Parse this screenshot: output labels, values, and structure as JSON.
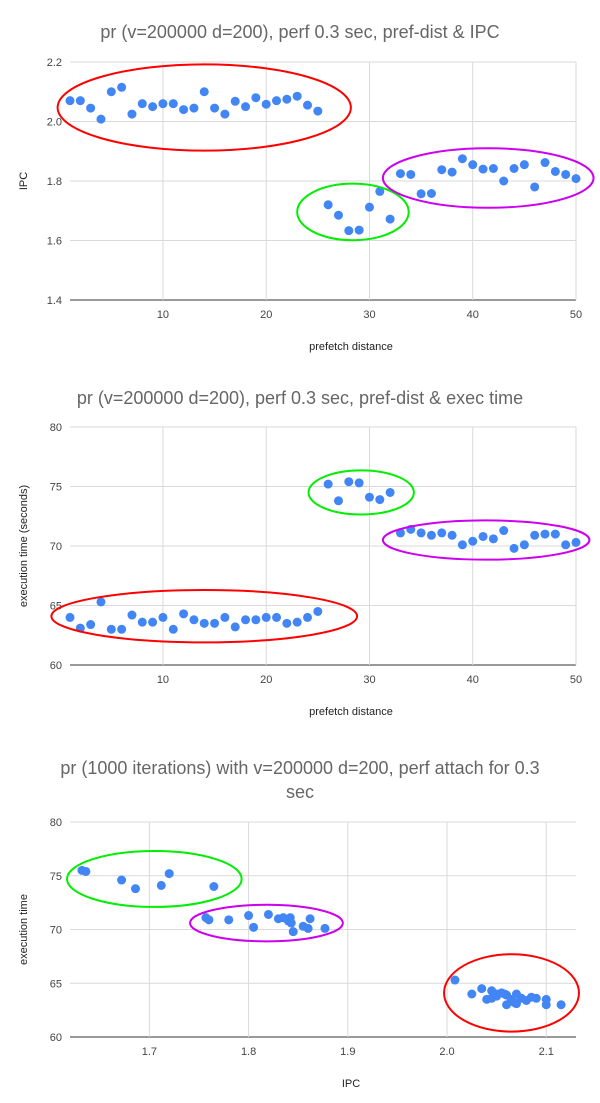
{
  "chart_data": [
    {
      "type": "scatter",
      "title_lines": [
        "pr (v=200000 d=200), perf 0.3 sec, pref-dist & IPC"
      ],
      "xlabel": "prefetch distance",
      "ylabel": "IPC",
      "xlim": [
        1,
        50
      ],
      "ylim": [
        1.4,
        2.2
      ],
      "xticks": [
        10,
        20,
        30,
        40,
        50
      ],
      "xtick_labels": [
        "10",
        "20",
        "30",
        "40",
        "50"
      ],
      "yticks": [
        1.4,
        1.6,
        1.8,
        2.0,
        2.2
      ],
      "ytick_labels": [
        "1.4",
        "1.6",
        "1.8",
        "2.0",
        "2.2"
      ],
      "grid": true,
      "points": [
        [
          1,
          2.07
        ],
        [
          2,
          2.07
        ],
        [
          3,
          2.045
        ],
        [
          4,
          2.008
        ],
        [
          5,
          2.1
        ],
        [
          6,
          2.115
        ],
        [
          7,
          2.025
        ],
        [
          8,
          2.06
        ],
        [
          9,
          2.05
        ],
        [
          10,
          2.06
        ],
        [
          11,
          2.06
        ],
        [
          12,
          2.04
        ],
        [
          13,
          2.045
        ],
        [
          14,
          2.1
        ],
        [
          15,
          2.045
        ],
        [
          16,
          2.025
        ],
        [
          17,
          2.068
        ],
        [
          18,
          2.05
        ],
        [
          19,
          2.08
        ],
        [
          20,
          2.058
        ],
        [
          21,
          2.07
        ],
        [
          22,
          2.075
        ],
        [
          23,
          2.085
        ],
        [
          24,
          2.055
        ],
        [
          25,
          2.035
        ],
        [
          26,
          1.72
        ],
        [
          27,
          1.685
        ],
        [
          28,
          1.633
        ],
        [
          29,
          1.635
        ],
        [
          30,
          1.712
        ],
        [
          31,
          1.765
        ],
        [
          32,
          1.672
        ],
        [
          33,
          1.825
        ],
        [
          34,
          1.822
        ],
        [
          35,
          1.757
        ],
        [
          36,
          1.758
        ],
        [
          37,
          1.838
        ],
        [
          38,
          1.83
        ],
        [
          39,
          1.875
        ],
        [
          40,
          1.855
        ],
        [
          41,
          1.84
        ],
        [
          42,
          1.842
        ],
        [
          43,
          1.8
        ],
        [
          44,
          1.842
        ],
        [
          45,
          1.855
        ],
        [
          46,
          1.78
        ],
        [
          47,
          1.862
        ],
        [
          48,
          1.832
        ],
        [
          49,
          1.822
        ],
        [
          50,
          1.808
        ]
      ],
      "annotations": [
        {
          "shape": "ellipse",
          "color": "#ff0000",
          "cx": 14,
          "cy": 2.047,
          "rx": 14.2,
          "ry": 0.145
        },
        {
          "shape": "ellipse",
          "color": "#00ee00",
          "cx": 28.4,
          "cy": 1.696,
          "rx": 5.4,
          "ry": 0.095
        },
        {
          "shape": "ellipse",
          "color": "#cc00ee",
          "cx": 41.5,
          "cy": 1.81,
          "rx": 10.2,
          "ry": 0.1
        }
      ]
    },
    {
      "type": "scatter",
      "title_lines": [
        "pr (v=200000 d=200), perf 0.3 sec, pref-dist & exec time"
      ],
      "xlabel": "prefetch distance",
      "ylabel": "execution time (seconds)",
      "xlim": [
        1,
        50
      ],
      "ylim": [
        60,
        80
      ],
      "xticks": [
        10,
        20,
        30,
        40,
        50
      ],
      "xtick_labels": [
        "10",
        "20",
        "30",
        "40",
        "50"
      ],
      "yticks": [
        60,
        65,
        70,
        75,
        80
      ],
      "ytick_labels": [
        "60",
        "65",
        "70",
        "75",
        "80"
      ],
      "grid": true,
      "points": [
        [
          1,
          64.0
        ],
        [
          2,
          63.1
        ],
        [
          3,
          63.4
        ],
        [
          4,
          65.3
        ],
        [
          5,
          63.0
        ],
        [
          6,
          63.0
        ],
        [
          7,
          64.2
        ],
        [
          8,
          63.6
        ],
        [
          9,
          63.6
        ],
        [
          10,
          64.0
        ],
        [
          11,
          63.0
        ],
        [
          12,
          64.3
        ],
        [
          13,
          63.8
        ],
        [
          14,
          63.5
        ],
        [
          15,
          63.5
        ],
        [
          16,
          64.0
        ],
        [
          17,
          63.2
        ],
        [
          18,
          63.8
        ],
        [
          19,
          63.8
        ],
        [
          20,
          64.0
        ],
        [
          21,
          64.0
        ],
        [
          22,
          63.5
        ],
        [
          23,
          63.6
        ],
        [
          24,
          64.0
        ],
        [
          25,
          64.5
        ],
        [
          26,
          75.2
        ],
        [
          27,
          73.8
        ],
        [
          28,
          75.4
        ],
        [
          29,
          75.3
        ],
        [
          30,
          74.1
        ],
        [
          31,
          73.9
        ],
        [
          32,
          74.5
        ],
        [
          33,
          71.1
        ],
        [
          34,
          71.4
        ],
        [
          35,
          71.1
        ],
        [
          36,
          70.9
        ],
        [
          37,
          71.1
        ],
        [
          38,
          70.9
        ],
        [
          39,
          70.1
        ],
        [
          40,
          70.4
        ],
        [
          41,
          70.8
        ],
        [
          42,
          70.6
        ],
        [
          43,
          71.3
        ],
        [
          44,
          69.8
        ],
        [
          45,
          70.1
        ],
        [
          46,
          70.9
        ],
        [
          47,
          71.0
        ],
        [
          48,
          71.0
        ],
        [
          49,
          70.1
        ],
        [
          50,
          70.3
        ]
      ],
      "annotations": [
        {
          "shape": "ellipse",
          "color": "#ff0000",
          "cx": 14,
          "cy": 64.1,
          "rx": 14.8,
          "ry": 2.2
        },
        {
          "shape": "ellipse",
          "color": "#00ee00",
          "cx": 29.2,
          "cy": 74.5,
          "rx": 5.1,
          "ry": 1.85
        },
        {
          "shape": "ellipse",
          "color": "#cc00ee",
          "cx": 41.3,
          "cy": 70.5,
          "rx": 10.0,
          "ry": 1.65
        }
      ]
    },
    {
      "type": "scatter",
      "title_lines": [
        "pr (1000 iterations) with v=200000 d=200, perf attach for 0.3",
        "sec"
      ],
      "xlabel": "IPC",
      "ylabel": "execution time",
      "xlim": [
        1.62,
        2.13
      ],
      "ylim": [
        60,
        80
      ],
      "xticks": [
        1.7,
        1.8,
        1.9,
        2.0,
        2.1
      ],
      "xtick_labels": [
        "1.7",
        "1.8",
        "1.9",
        "2.0",
        "2.1"
      ],
      "yticks": [
        60,
        65,
        70,
        75,
        80
      ],
      "ytick_labels": [
        "60",
        "65",
        "70",
        "75",
        "80"
      ],
      "grid": true,
      "points": [
        [
          1.632,
          75.5
        ],
        [
          1.636,
          75.4
        ],
        [
          1.672,
          74.6
        ],
        [
          1.686,
          73.8
        ],
        [
          1.712,
          74.1
        ],
        [
          1.72,
          75.2
        ],
        [
          1.765,
          74.0
        ],
        [
          1.757,
          71.1
        ],
        [
          1.76,
          70.9
        ],
        [
          1.78,
          70.9
        ],
        [
          1.8,
          71.3
        ],
        [
          1.805,
          70.2
        ],
        [
          1.82,
          71.4
        ],
        [
          1.83,
          71.0
        ],
        [
          1.835,
          71.1
        ],
        [
          1.84,
          70.8
        ],
        [
          1.842,
          71.1
        ],
        [
          1.843,
          70.6
        ],
        [
          1.845,
          69.8
        ],
        [
          1.855,
          70.3
        ],
        [
          1.86,
          70.1
        ],
        [
          1.862,
          71.0
        ],
        [
          1.877,
          70.1
        ],
        [
          2.008,
          65.3
        ],
        [
          2.025,
          64.0
        ],
        [
          2.035,
          64.5
        ],
        [
          2.045,
          64.3
        ],
        [
          2.04,
          63.5
        ],
        [
          2.045,
          63.6
        ],
        [
          2.05,
          63.8
        ],
        [
          2.05,
          64.0
        ],
        [
          2.055,
          64.1
        ],
        [
          2.06,
          63.9
        ],
        [
          2.06,
          63.0
        ],
        [
          2.058,
          64.0
        ],
        [
          2.065,
          63.5
        ],
        [
          2.068,
          63.2
        ],
        [
          2.07,
          64.0
        ],
        [
          2.07,
          63.1
        ],
        [
          2.075,
          63.6
        ],
        [
          2.08,
          63.4
        ],
        [
          2.085,
          63.7
        ],
        [
          2.09,
          63.6
        ],
        [
          2.1,
          63.0
        ],
        [
          2.1,
          63.5
        ],
        [
          2.115,
          63.0
        ]
      ],
      "annotations": [
        {
          "shape": "ellipse",
          "color": "#00ee00",
          "cx": 1.705,
          "cy": 74.7,
          "rx": 0.088,
          "ry": 2.6
        },
        {
          "shape": "ellipse",
          "color": "#cc00ee",
          "cx": 1.818,
          "cy": 70.6,
          "rx": 0.077,
          "ry": 1.7
        },
        {
          "shape": "ellipse",
          "color": "#ff0000",
          "cx": 2.065,
          "cy": 64.1,
          "rx": 0.068,
          "ry": 3.6
        }
      ]
    }
  ]
}
